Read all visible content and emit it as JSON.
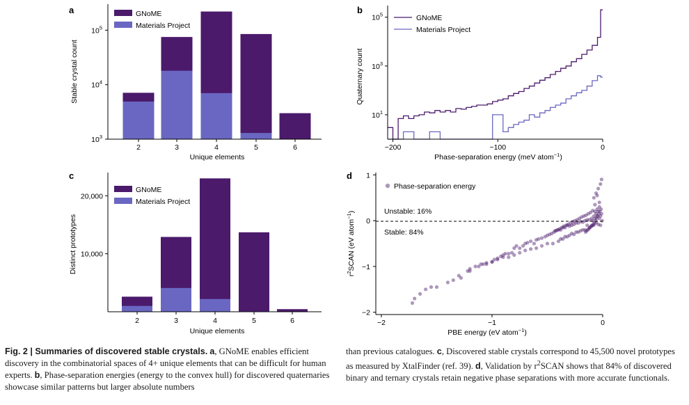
{
  "panels": {
    "a": {
      "letter": "a",
      "ylabel": "Stable crystal count",
      "xlabel": "Unique elements",
      "legend": [
        "GNoME",
        "Materials Project"
      ],
      "yticks": [
        {
          "base": "10",
          "exp": "3",
          "value": 1000
        },
        {
          "base": "10",
          "exp": "4",
          "value": 10000
        },
        {
          "base": "10",
          "exp": "5",
          "value": 100000
        }
      ]
    },
    "b": {
      "letter": "b",
      "ylabel": "Quaternary count",
      "xlabel_main": "Phase-separation energy (meV atom",
      "xlabel_sup": "−1",
      "xlabel_end": ")",
      "legend": [
        "GNoME",
        "Materials Project"
      ],
      "xticks": [
        "−200",
        "−100",
        "0"
      ],
      "yticks": [
        {
          "base": "10",
          "exp": "1",
          "value": 10
        },
        {
          "base": "10",
          "exp": "3",
          "value": 1000
        },
        {
          "base": "10",
          "exp": "5",
          "value": 100000
        }
      ]
    },
    "c": {
      "letter": "c",
      "ylabel": "Distinct prototypes",
      "xlabel": "Unique elements",
      "legend": [
        "GNoME",
        "Materials Project"
      ],
      "yticks": [
        "10,000",
        "20,000"
      ]
    },
    "d": {
      "letter": "d",
      "ylabel_pre": "r",
      "ylabel_sup": "2",
      "ylabel_main": "SCAN (eV atom",
      "ylabel_sup2": "−1",
      "ylabel_end": ")",
      "xlabel_main": "PBE energy (eV atom",
      "xlabel_sup": "−1",
      "xlabel_end": ")",
      "legend": "Phase-separation energy",
      "unstable_label": "Unstable: 16%",
      "stable_label": "Stable: 84%",
      "xticks": [
        "−2",
        "−1",
        "0"
      ],
      "yticks": [
        "1",
        "0",
        "−1",
        "−2"
      ]
    }
  },
  "colors": {
    "gnome": "#4b1a6b",
    "materials_project": "#6a67c2",
    "scatter": "#4b1a6b"
  },
  "chart_data": [
    {
      "panel": "a",
      "type": "bar",
      "categories": [
        "2",
        "3",
        "4",
        "5",
        "6"
      ],
      "series": [
        {
          "name": "GNoME",
          "values": [
            7100,
            75000,
            220000,
            85000,
            3000
          ]
        },
        {
          "name": "Materials Project",
          "values": [
            4900,
            18000,
            7000,
            1300,
            0
          ]
        }
      ],
      "xlabel": "Unique elements",
      "ylabel": "Stable crystal count",
      "yscale": "log",
      "ylim": [
        1000,
        300000
      ],
      "legend": "top-left",
      "grid": false
    },
    {
      "panel": "b",
      "type": "line",
      "step": true,
      "series": [
        {
          "name": "GNoME",
          "x": [
            -205,
            -200,
            -195,
            -190,
            -185,
            -180,
            -175,
            -170,
            -165,
            -160,
            -155,
            -150,
            -145,
            -140,
            -135,
            -130,
            -125,
            -120,
            -115,
            -110,
            -105,
            -100,
            -95,
            -90,
            -85,
            -80,
            -75,
            -70,
            -65,
            -60,
            -55,
            -50,
            -45,
            -40,
            -35,
            -30,
            -25,
            -20,
            -15,
            -10,
            -5,
            -2
          ],
          "y": [
            3,
            1,
            7,
            9,
            7,
            9,
            10,
            13,
            12,
            15,
            13,
            15,
            13,
            18,
            17,
            20,
            22,
            25,
            25,
            28,
            35,
            40,
            45,
            60,
            75,
            90,
            120,
            150,
            200,
            260,
            330,
            450,
            600,
            800,
            1000,
            1500,
            2000,
            3000,
            4500,
            7000,
            15000,
            200000
          ]
        },
        {
          "name": "Materials Project",
          "x": [
            -205,
            -200,
            -195,
            -190,
            -185,
            -180,
            -175,
            -170,
            -165,
            -160,
            -155,
            -150,
            -145,
            -140,
            -135,
            -130,
            -125,
            -120,
            -115,
            -110,
            -105,
            -100,
            -95,
            -90,
            -85,
            -80,
            -75,
            -70,
            -65,
            -60,
            -55,
            -50,
            -45,
            -40,
            -35,
            -30,
            -25,
            -20,
            -15,
            -10,
            -5,
            -2
          ],
          "y": [
            1,
            1,
            1,
            2,
            2,
            1,
            1,
            1,
            2,
            2,
            1,
            1,
            1,
            1,
            1,
            1,
            1,
            1,
            1,
            1,
            10,
            10,
            2,
            3,
            4,
            5,
            6,
            10,
            8,
            12,
            15,
            20,
            25,
            30,
            45,
            60,
            80,
            100,
            150,
            250,
            400,
            350
          ]
        }
      ],
      "xlabel": "Phase-separation energy (meV atom−1)",
      "ylabel": "Quaternary count",
      "xlim": [
        -205,
        0
      ],
      "yscale": "log",
      "ylim": [
        1,
        300000
      ],
      "legend": "top-left",
      "grid": false
    },
    {
      "panel": "c",
      "type": "bar",
      "categories": [
        "2",
        "3",
        "4",
        "5",
        "6"
      ],
      "series": [
        {
          "name": "GNoME",
          "values": [
            2600,
            12900,
            23000,
            13700,
            450
          ]
        },
        {
          "name": "Materials Project",
          "values": [
            1000,
            4100,
            2200,
            80,
            0
          ]
        }
      ],
      "xlabel": "Unique elements",
      "ylabel": "Distinct prototypes",
      "ylim": [
        0,
        24000
      ],
      "legend": "top-left",
      "grid": false
    },
    {
      "panel": "d",
      "type": "scatter",
      "series": [
        {
          "name": "Phase-separation energy",
          "alpha": 0.45,
          "x": [
            -1.72,
            -1.7,
            -1.65,
            -1.6,
            -1.55,
            -1.5,
            -1.4,
            -1.35,
            -1.3,
            -1.28,
            -1.22,
            -1.2,
            -1.15,
            -1.12,
            -1.08,
            -1.05,
            -1.0,
            -0.98,
            -0.95,
            -0.92,
            -0.9,
            -0.88,
            -0.85,
            -0.82,
            -0.8,
            -0.78,
            -0.75,
            -0.72,
            -0.7,
            -0.68,
            -0.65,
            -0.62,
            -0.6,
            -0.58,
            -0.55,
            -0.52,
            -0.5,
            -0.48,
            -0.46,
            -0.44,
            -0.42,
            -0.4,
            -0.38,
            -0.36,
            -0.34,
            -0.32,
            -0.3,
            -0.28,
            -0.26,
            -0.24,
            -0.22,
            -0.2,
            -0.18,
            -0.16,
            -0.14,
            -0.12,
            -0.1,
            -0.09,
            -0.08,
            -0.07,
            -0.06,
            -0.05,
            -0.04,
            -0.03,
            -0.02,
            -0.01,
            -0.005,
            -0.02,
            -0.04,
            -0.06,
            -0.08,
            -0.1,
            -0.12,
            -0.14,
            -0.16,
            -0.18,
            -0.2,
            -0.22,
            -0.24,
            -0.26,
            -0.28,
            -0.3,
            -0.32,
            -0.34,
            -0.36,
            -0.38,
            -0.4,
            -0.45,
            -0.5,
            -0.55,
            -0.6,
            -0.65,
            -0.7,
            -0.75,
            -0.8,
            -0.85,
            -0.9,
            -0.95,
            -1.0,
            -1.05,
            -1.1,
            -1.2,
            -0.03,
            -0.05,
            -0.07,
            -0.09,
            -0.11,
            -0.13,
            -0.15,
            -0.17,
            -0.19,
            -0.21,
            -0.23,
            -0.25,
            -0.27,
            -0.29,
            -0.31,
            -0.33,
            -0.35,
            -0.37,
            -0.39,
            -0.41,
            -0.43,
            -0.015,
            -0.025,
            -0.035,
            -0.045,
            -0.055,
            -0.065,
            -0.075,
            -0.085,
            -0.095,
            -0.105,
            -0.115,
            -0.125,
            -0.135,
            -0.145,
            -0.155,
            -0.02,
            -0.04,
            -0.06,
            -0.08,
            -0.01,
            -0.03,
            -0.05,
            -0.07
          ],
          "y": [
            -1.8,
            -1.7,
            -1.6,
            -1.5,
            -1.45,
            -1.45,
            -1.35,
            -1.3,
            -1.2,
            -1.25,
            -1.1,
            -1.05,
            -1.0,
            -1.0,
            -0.95,
            -0.95,
            -0.9,
            -0.85,
            -0.82,
            -0.78,
            -0.75,
            -0.72,
            -0.72,
            -0.7,
            -0.6,
            -0.55,
            -0.6,
            -0.55,
            -0.5,
            -0.48,
            -0.45,
            -0.5,
            -0.42,
            -0.4,
            -0.38,
            -0.35,
            -0.32,
            -0.3,
            -0.28,
            -0.25,
            -0.22,
            -0.2,
            -0.2,
            -0.15,
            -0.15,
            -0.1,
            -0.12,
            -0.1,
            -0.08,
            -0.05,
            -0.05,
            -0.02,
            -0.03,
            0.0,
            0.02,
            0.02,
            0.05,
            0.0,
            0.1,
            0.05,
            0.15,
            0.1,
            0.2,
            0.05,
            0.1,
            0.15,
            0.0,
            -0.1,
            -0.08,
            -0.05,
            -0.1,
            -0.12,
            -0.15,
            -0.1,
            -0.2,
            -0.2,
            -0.22,
            -0.25,
            -0.25,
            -0.3,
            -0.28,
            -0.32,
            -0.35,
            -0.35,
            -0.4,
            -0.4,
            -0.45,
            -0.5,
            -0.5,
            -0.55,
            -0.6,
            -0.62,
            -0.65,
            -0.7,
            -0.75,
            -0.8,
            -0.8,
            -0.85,
            -0.9,
            -0.92,
            -0.95,
            -1.1,
            0.3,
            0.25,
            0.2,
            0.22,
            0.18,
            0.15,
            0.12,
            0.1,
            0.08,
            0.05,
            0.02,
            0.0,
            -0.02,
            -0.05,
            -0.08,
            -0.1,
            -0.12,
            -0.15,
            -0.18,
            -0.2,
            -0.22,
            0.25,
            0.2,
            0.15,
            0.1,
            0.05,
            0.0,
            -0.05,
            -0.08,
            -0.1,
            -0.12,
            -0.15,
            -0.18,
            -0.2,
            -0.22,
            -0.25,
            0.8,
            0.7,
            0.6,
            0.5,
            0.9,
            0.4,
            0.55,
            0.35
          ]
        }
      ],
      "xlabel": "PBE energy (eV atom−1)",
      "ylabel": "r2SCAN (eV atom−1)",
      "xlim": [
        -2.05,
        0
      ],
      "ylim": [
        -2.05,
        1.05
      ],
      "reference_line": {
        "y": 0,
        "style": "dashed"
      },
      "legend": "top-left",
      "grid": false
    }
  ],
  "caption": {
    "label": "Fig. 2 | Summaries of discovered stable crystals.",
    "left": [
      {
        "b": "a",
        "t": ", GNoME enables efficient discovery in the combinatorial spaces of 4+ unique elements that can be difficult for human experts. "
      },
      {
        "b": "b",
        "t": ", Phase-separation energies (energy to the convex hull) for discovered quaternaries showcase similar patterns but larger absolute numbers"
      }
    ],
    "right": [
      {
        "b": "",
        "t": "than previous catalogues. "
      },
      {
        "b": "c",
        "t": ", Discovered stable crystals correspond to 45,500 novel prototypes as measured by XtalFinder (ref. 39). "
      },
      {
        "b": "d",
        "t": ", Validation by r"
      },
      {
        "sup": "2"
      },
      {
        "b": "",
        "t": "SCAN shows that 84% of discovered binary and ternary crystals retain negative phase separations with more accurate functionals."
      }
    ]
  }
}
